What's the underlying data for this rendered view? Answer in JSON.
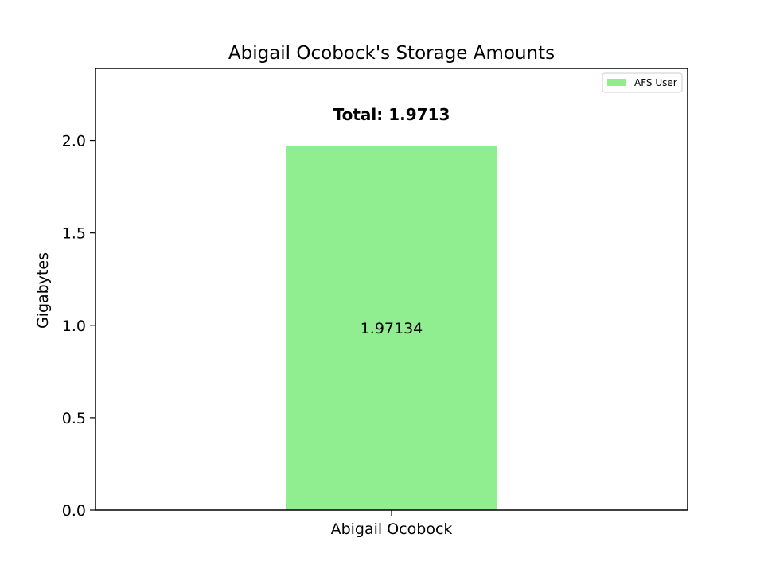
{
  "chart_data": {
    "type": "bar",
    "title": "Abigail Ocobock's Storage Amounts",
    "xlabel": "",
    "ylabel": "Gigabytes",
    "categories": [
      "Abigail Ocobock"
    ],
    "series": [
      {
        "name": "AFS User",
        "values": [
          1.97134
        ],
        "data_labels": [
          "1.97134"
        ],
        "color": "#90ee90"
      }
    ],
    "total_label": "Total: 1.9713",
    "ylim": [
      0,
      2.39
    ],
    "yticks": [
      0.0,
      0.5,
      1.0,
      1.5,
      2.0
    ],
    "ytick_labels": [
      "0.0",
      "0.5",
      "1.0",
      "1.5",
      "2.0"
    ],
    "grid": false,
    "legend": {
      "placement": "top-right"
    }
  }
}
